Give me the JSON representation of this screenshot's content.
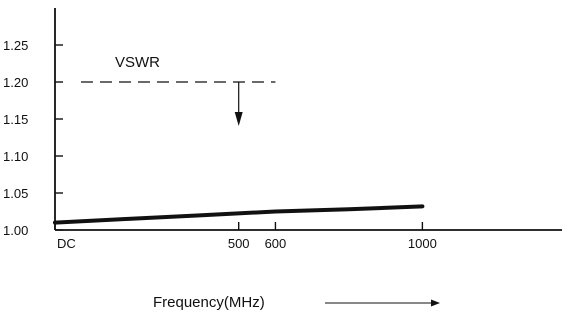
{
  "chart_data": {
    "type": "line",
    "title": "",
    "xlabel": "Frequency(MHz)",
    "ylabel": "",
    "x_ticks": [
      {
        "value": 0,
        "label": "DC"
      },
      {
        "value": 500,
        "label": "500"
      },
      {
        "value": 600,
        "label": "600"
      },
      {
        "value": 1000,
        "label": "1000"
      }
    ],
    "y_ticks": [
      {
        "value": 1.0,
        "label": "1.00"
      },
      {
        "value": 1.05,
        "label": "1.05"
      },
      {
        "value": 1.1,
        "label": "1.10"
      },
      {
        "value": 1.15,
        "label": "1.15"
      },
      {
        "value": 1.2,
        "label": "1.20"
      },
      {
        "value": 1.25,
        "label": "1.25"
      }
    ],
    "xlim": [
      0,
      1380
    ],
    "ylim": [
      1.0,
      1.3
    ],
    "grid": false,
    "series": [
      {
        "x": [
          0,
          200,
          400,
          600,
          800,
          1000
        ],
        "y": [
          1.01,
          1.015,
          1.02,
          1.025,
          1.028,
          1.032
        ]
      }
    ],
    "annotations": {
      "limit_label": "VSWR",
      "limit_value": 1.2,
      "limit_x_range": [
        0,
        600
      ],
      "arrow_at_x": 500
    }
  }
}
